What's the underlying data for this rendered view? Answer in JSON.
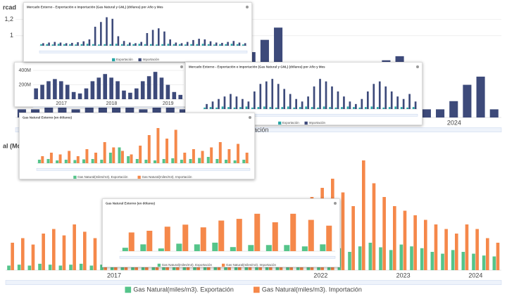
{
  "chart_data": [
    {
      "type": "bar",
      "title": "rcad",
      "categories": [
        null,
        null,
        null,
        null,
        null,
        null,
        null,
        null,
        null,
        null,
        null,
        null,
        null,
        null,
        null,
        null,
        null,
        null,
        null,
        null,
        null,
        null,
        null,
        null,
        null,
        null,
        null,
        null,
        null,
        null,
        null,
        null,
        "2024",
        null,
        null,
        null
      ],
      "series": [
        {
          "name": "Importación",
          "color": "#3d4a7a",
          "values": [
            0.1,
            0.1,
            0.2,
            0.15,
            0.1,
            0.2,
            0.3,
            0.25,
            0.2,
            0.1,
            0.15,
            0.2,
            0.1,
            0.2,
            0.3,
            0.5,
            0.7,
            0.8,
            0.95,
            1.1,
            0.4,
            0.2,
            0.1,
            0.15,
            0.2,
            0.4,
            0.6,
            0.7,
            0.75,
            0.3,
            0.1,
            0.1,
            0.2,
            0.4,
            0.5,
            0.1
          ]
        }
      ],
      "ylim": [
        0,
        1.3
      ],
      "yticks": [
        {
          "value": 1.2,
          "label": "1,2"
        },
        1
      ],
      "grid": true
    },
    {
      "type": "bar",
      "categories": [
        null,
        null,
        null,
        null,
        "2017",
        null,
        null,
        null,
        null,
        null,
        null,
        null,
        "2018",
        null,
        null,
        null,
        null,
        null,
        null,
        null,
        null,
        "2019",
        null,
        null
      ],
      "series": [
        {
          "name": null,
          "color": "#3d4a7a",
          "values": [
            150,
            200,
            250,
            280,
            250,
            200,
            100,
            80,
            150,
            250,
            300,
            350,
            300,
            250,
            120,
            90,
            150,
            250,
            320,
            380,
            300,
            200,
            100,
            60
          ]
        }
      ],
      "ylim": [
        0,
        450
      ],
      "yticks": [
        {
          "value": 200,
          "label": "200M"
        },
        {
          "value": 400,
          "label": "400M"
        }
      ],
      "grid": true
    },
    {
      "type": "bar",
      "title": "Mercado Externo - Exportación e Importación (Gas Natural y GNL) (dólares) por Año y Mes",
      "categories": [
        null,
        null,
        null,
        null,
        null,
        null,
        null,
        null,
        null,
        null,
        null,
        null,
        null,
        null,
        null,
        null,
        null,
        null,
        null,
        null,
        null,
        null,
        null,
        null,
        null,
        null,
        null,
        null,
        null,
        null,
        null,
        null,
        null,
        null,
        null,
        null
      ],
      "series": [
        {
          "name": "Exportación",
          "color": "#26a5a5",
          "values": [
            5,
            5,
            4,
            6,
            5,
            5,
            4,
            5,
            6,
            5,
            4,
            5,
            5,
            6,
            5,
            4,
            5,
            6,
            5,
            5,
            4,
            5,
            6,
            5,
            5,
            4,
            5,
            5,
            6,
            5,
            4,
            5,
            5,
            6,
            5,
            4
          ]
        },
        {
          "name": "Importación",
          "color": "#3d4a7a",
          "values": [
            8,
            10,
            12,
            10,
            8,
            9,
            11,
            14,
            20,
            60,
            75,
            90,
            85,
            30,
            15,
            10,
            8,
            12,
            40,
            50,
            55,
            45,
            20,
            10,
            8,
            12,
            18,
            22,
            20,
            14,
            10,
            9,
            12,
            15,
            10,
            8
          ]
        }
      ],
      "ylim": [
        0,
        100
      ]
    },
    {
      "type": "bar",
      "title": "Mercado Externo - Exportación e Importación (Gas Natural y GNL) (dólares) por Año y Mes",
      "categories": [
        null,
        null,
        null,
        null,
        null,
        null,
        null,
        null,
        null,
        null,
        null,
        null,
        null,
        null,
        null,
        null,
        null,
        null,
        null,
        null,
        null,
        null,
        null,
        null,
        null,
        null,
        null,
        null,
        null,
        null,
        null,
        null,
        null,
        null,
        null,
        null
      ],
      "series": [
        {
          "name": "Exportación",
          "color": "#26a5a5",
          "values": [
            3,
            4,
            3,
            5,
            4,
            3,
            4,
            5,
            3,
            4,
            5,
            4,
            3,
            4,
            5,
            3,
            4,
            5,
            4,
            3,
            5,
            4,
            3,
            4,
            5,
            4,
            3,
            4,
            5,
            4,
            3,
            4,
            5,
            4,
            3,
            4
          ]
        },
        {
          "name": "Importación",
          "color": "#3d4a7a",
          "values": [
            10,
            15,
            20,
            25,
            30,
            25,
            20,
            15,
            35,
            50,
            55,
            60,
            50,
            40,
            30,
            20,
            15,
            25,
            45,
            60,
            55,
            45,
            35,
            25,
            15,
            10,
            20,
            35,
            50,
            55,
            45,
            35,
            25,
            20,
            30,
            15
          ]
        }
      ],
      "ylim": [
        0,
        70
      ]
    },
    {
      "type": "bar",
      "title": "Gas Natural Externo (en dólares)",
      "categories": [
        null,
        null,
        null,
        null,
        null,
        null,
        null,
        null,
        null,
        null,
        null,
        null,
        null,
        null,
        null,
        null,
        null,
        null,
        null,
        null,
        null,
        null,
        null,
        null
      ],
      "series": [
        {
          "name": "Gas Natural(miles/m3). Exportación",
          "color": "#55c48a",
          "values": [
            10,
            12,
            8,
            10,
            9,
            11,
            12,
            10,
            30,
            45,
            20,
            12,
            10,
            8,
            12,
            14,
            10,
            12,
            15,
            18,
            12,
            10,
            8,
            10
          ]
        },
        {
          "name": "Gas Natural(miles/m3). Importación",
          "color": "#f5884a",
          "values": [
            20,
            30,
            25,
            35,
            20,
            40,
            30,
            60,
            45,
            35,
            25,
            50,
            80,
            100,
            70,
            95,
            30,
            40,
            35,
            45,
            60,
            40,
            55,
            30
          ]
        }
      ],
      "ylim": [
        0,
        110
      ]
    },
    {
      "type": "bar",
      "title": "al (Monto",
      "categories": [
        null,
        null,
        null,
        null,
        null,
        null,
        null,
        null,
        null,
        null,
        "2017",
        null,
        null,
        null,
        null,
        null,
        null,
        null,
        null,
        null,
        null,
        null,
        null,
        null,
        null,
        null,
        null,
        null,
        null,
        null,
        "2022",
        null,
        null,
        null,
        null,
        null,
        null,
        null,
        "2023",
        null,
        null,
        null,
        null,
        null,
        null,
        "2024",
        null,
        null
      ],
      "series": [
        {
          "name": "Gas Natural(miles/m3). Exportación",
          "color": "#55c48a",
          "values": [
            5,
            6,
            5,
            7,
            6,
            5,
            6,
            7,
            5,
            6,
            5,
            6,
            7,
            5,
            6,
            5,
            6,
            5,
            7,
            6,
            5,
            6,
            7,
            5,
            6,
            5,
            6,
            7,
            20,
            25,
            22,
            28,
            24,
            20,
            26,
            30,
            25,
            22,
            28,
            26,
            24,
            20,
            18,
            22,
            20,
            18,
            16,
            15
          ]
        },
        {
          "name": "Gas Natural(miles/m3). Importación",
          "color": "#f5884a",
          "values": [
            30,
            35,
            28,
            40,
            45,
            38,
            50,
            42,
            35,
            30,
            40,
            48,
            45,
            55,
            60,
            50,
            45,
            55,
            60,
            50,
            40,
            45,
            50,
            55,
            48,
            50,
            60,
            70,
            55,
            80,
            90,
            100,
            85,
            70,
            120,
            95,
            80,
            70,
            65,
            60,
            55,
            50,
            45,
            40,
            50,
            45,
            35,
            30
          ]
        }
      ],
      "ylim": [
        0,
        130
      ]
    },
    {
      "type": "bar",
      "title": "Gas Natural Externo (en dólares)",
      "categories": [
        null,
        null,
        null,
        null,
        null,
        null,
        null,
        null,
        null,
        null,
        null,
        null
      ],
      "series": [
        {
          "name": "Gas Natural(miles/m3). Exportación",
          "color": "#55c48a",
          "values": [
            10,
            20,
            8,
            22,
            20,
            25,
            12,
            18,
            18,
            18,
            14,
            20
          ]
        },
        {
          "name": "Gas Natural(miles/m3). Importación",
          "color": "#f5884a",
          "values": [
            55,
            60,
            72,
            78,
            70,
            90,
            95,
            110,
            85,
            110,
            92,
            75
          ]
        }
      ],
      "ylim": [
        0,
        120
      ]
    }
  ]
}
